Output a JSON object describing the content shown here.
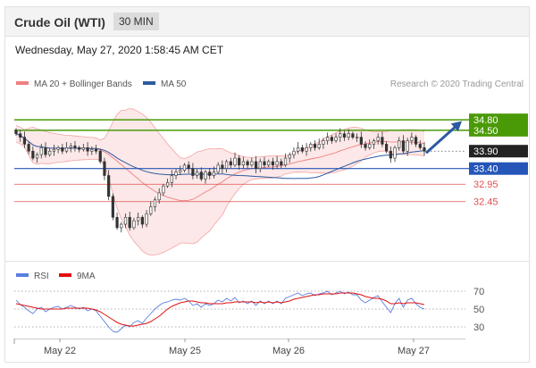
{
  "header": {
    "title": "Crude Oil (WTI)",
    "interval": "30 MIN"
  },
  "datetime": "Wednesday, May 27, 2020 1:58:45 AM CET",
  "legend": {
    "bollinger": "MA 20 + Bollinger Bands",
    "ma50": "MA 50",
    "credit": "Research © 2020 Trading Central",
    "rsi": "RSI",
    "rsi_ma": "9MA"
  },
  "colors": {
    "bollinger": "#f08080",
    "ma50": "#2c5aa0",
    "resistance": "#4a9a08",
    "support": "#2555b8",
    "target": "#e05050",
    "arrow": "#2c5aa0",
    "rsi": "#5a7fe0",
    "rsi_ma": "#e01010"
  },
  "chart_data": [
    {
      "type": "candlestick",
      "ylim": [
        30.8,
        35.6
      ],
      "x_ticks": [
        "May 22",
        "May 25",
        "May 26",
        "May 27"
      ],
      "levels": [
        {
          "label": "34.80",
          "value": 34.8,
          "kind": "resistance"
        },
        {
          "label": "34.50",
          "value": 34.5,
          "kind": "resistance"
        },
        {
          "label": "33.90",
          "value": 33.9,
          "kind": "last"
        },
        {
          "label": "33.40",
          "value": 33.4,
          "kind": "support"
        },
        {
          "label": "32.95",
          "value": 32.95,
          "kind": "target"
        },
        {
          "label": "32.45",
          "value": 32.45,
          "kind": "target"
        }
      ],
      "close": [
        34.4,
        34.3,
        34.1,
        33.9,
        33.7,
        33.8,
        34.0,
        33.8,
        33.9,
        33.95,
        34.0,
        33.9,
        34.0,
        34.05,
        34.0,
        33.95,
        34.0,
        33.9,
        33.95,
        33.9,
        33.6,
        33.2,
        32.6,
        32.0,
        31.7,
        31.8,
        32.0,
        31.7,
        31.9,
        32.0,
        31.8,
        32.1,
        32.3,
        32.5,
        32.7,
        32.9,
        33.0,
        33.2,
        33.3,
        33.35,
        33.5,
        33.4,
        33.2,
        33.3,
        33.1,
        33.3,
        33.2,
        33.3,
        33.5,
        33.4,
        33.6,
        33.5,
        33.7,
        33.5,
        33.6,
        33.5,
        33.6,
        33.4,
        33.6,
        33.5,
        33.6,
        33.5,
        33.6,
        33.5,
        33.7,
        33.8,
        33.9,
        34.0,
        33.9,
        34.0,
        34.1,
        34.0,
        34.1,
        34.2,
        34.3,
        34.2,
        34.3,
        34.4,
        34.3,
        34.4,
        34.3,
        34.3,
        34.1,
        34.0,
        34.1,
        34.2,
        34.3,
        34.1,
        33.9,
        33.7,
        34.0,
        34.2,
        33.9,
        34.2,
        34.3,
        34.1,
        34.0,
        33.9
      ]
    },
    {
      "type": "line",
      "ylim": [
        20,
        80
      ],
      "y_ticks": [
        70,
        50,
        30
      ],
      "series": [
        {
          "name": "RSI",
          "values": [
            60,
            55,
            52,
            48,
            45,
            50,
            52,
            47,
            50,
            52,
            53,
            50,
            52,
            54,
            52,
            50,
            52,
            48,
            50,
            48,
            42,
            36,
            30,
            25,
            24,
            28,
            32,
            30,
            35,
            37,
            34,
            40,
            45,
            50,
            54,
            57,
            58,
            60,
            61,
            60,
            62,
            59,
            54,
            56,
            52,
            56,
            54,
            56,
            60,
            58,
            62,
            59,
            63,
            57,
            59,
            56,
            59,
            54,
            59,
            56,
            59,
            56,
            59,
            56,
            62,
            64,
            66,
            68,
            65,
            67,
            68,
            65,
            67,
            68,
            70,
            66,
            68,
            70,
            67,
            69,
            66,
            66,
            60,
            57,
            60,
            63,
            65,
            58,
            52,
            46,
            56,
            62,
            52,
            60,
            62,
            56,
            52,
            50
          ]
        },
        {
          "name": "9MA",
          "values": [
            56,
            55,
            54,
            53,
            52,
            51,
            50,
            50,
            50,
            50,
            50,
            50,
            51,
            51,
            51,
            51,
            51,
            51,
            50,
            49,
            47,
            44,
            41,
            38,
            35,
            33,
            32,
            31,
            31,
            32,
            33,
            34,
            36,
            39,
            42,
            46,
            50,
            53,
            55,
            57,
            58,
            59,
            59,
            58,
            57,
            57,
            56,
            56,
            56,
            56,
            57,
            57,
            58,
            58,
            58,
            58,
            58,
            57,
            58,
            57,
            58,
            57,
            58,
            57,
            58,
            59,
            61,
            62,
            63,
            64,
            65,
            66,
            66,
            67,
            67,
            67,
            67,
            68,
            68,
            68,
            68,
            67,
            66,
            64,
            63,
            62,
            62,
            61,
            59,
            56,
            56,
            57,
            56,
            57,
            57,
            57,
            56,
            55
          ]
        }
      ]
    }
  ]
}
